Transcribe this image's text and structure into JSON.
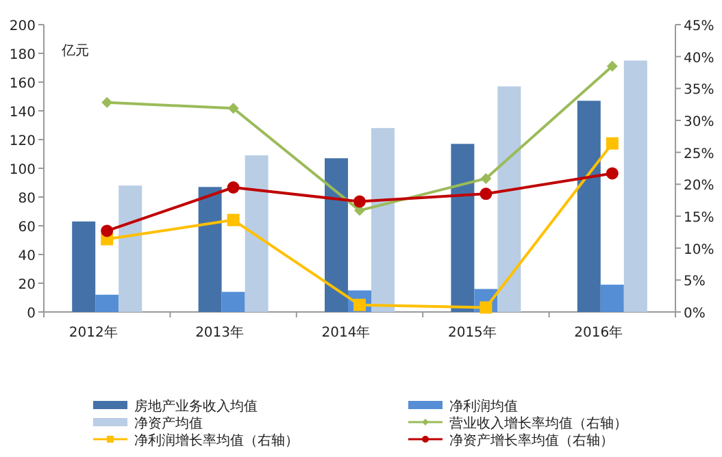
{
  "chart_data": {
    "type": "bar",
    "ylabel": "亿元",
    "categories": [
      "2012年",
      "2013年",
      "2014年",
      "2015年",
      "2016年"
    ],
    "series": [
      {
        "name": "房地产业务收入均值",
        "color": "#4472a8",
        "values": [
          63,
          87,
          107,
          117,
          147
        ]
      },
      {
        "name": "净利润均值",
        "color": "#558ed5",
        "values": [
          12,
          14,
          15,
          16,
          19
        ]
      },
      {
        "name": "净资产均值",
        "color": "#b9cde5",
        "values": [
          88,
          109,
          128,
          157,
          175
        ]
      },
      {
        "name": "营业收入增长率均值（右轴）",
        "type": "line",
        "axis": "y2",
        "marker": "diamond",
        "color": "#9bbb59",
        "values": [
          32.8,
          31.9,
          15.9,
          20.9,
          38.5
        ]
      },
      {
        "name": "净利润增长率均值（右轴）",
        "type": "line",
        "axis": "y2",
        "marker": "square",
        "color": "#ffc000",
        "values": [
          11.4,
          14.4,
          1.1,
          0.7,
          26.4
        ]
      },
      {
        "name": "净资产增长率均值（右轴）",
        "type": "line",
        "axis": "y2",
        "marker": "circle",
        "color": "#c00000",
        "values": [
          12.7,
          19.5,
          17.3,
          18.5,
          21.7
        ]
      }
    ],
    "ylim": [
      0,
      200
    ],
    "yticks": [
      0,
      20,
      40,
      60,
      80,
      100,
      120,
      140,
      160,
      180,
      200
    ],
    "y2lim": [
      0,
      45
    ],
    "y2ticks": [
      {
        "value": 0,
        "label": "0%"
      },
      {
        "value": 5,
        "label": "5%"
      },
      {
        "value": 10,
        "label": "10%"
      },
      {
        "value": 15,
        "label": "15%"
      },
      {
        "value": 20,
        "label": "20%"
      },
      {
        "value": 25,
        "label": "25%"
      },
      {
        "value": 30,
        "label": "30%"
      },
      {
        "value": 35,
        "label": "35%"
      },
      {
        "value": 40,
        "label": "40%"
      },
      {
        "value": 45,
        "label": "45%"
      }
    ],
    "legend": "bottom",
    "grid": false
  }
}
